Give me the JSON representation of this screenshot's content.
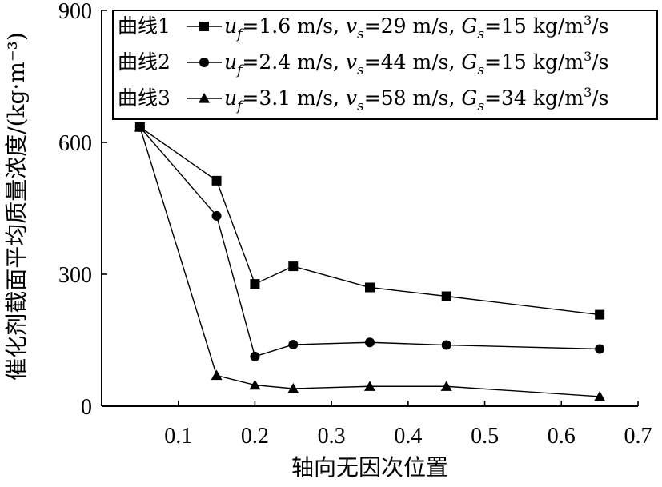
{
  "chart_data": {
    "type": "line",
    "title": "",
    "xlabel": "轴向无因次位置",
    "ylabel": "催化剂截面平均质量浓度/(kg·m⁻³)",
    "xlim": [
      0,
      0.7
    ],
    "ylim": [
      0,
      900
    ],
    "x_ticks": [
      "0.1",
      "0.2",
      "0.3",
      "0.4",
      "0.5",
      "0.6",
      "0.7"
    ],
    "y_ticks": [
      "0",
      "300",
      "600",
      "900"
    ],
    "grid": false,
    "legend_position": "top-right",
    "x": [
      0.05,
      0.15,
      0.2,
      0.25,
      0.35,
      0.45,
      0.65
    ],
    "series": [
      {
        "name": "曲线1",
        "marker": "square",
        "values": [
          635,
          513,
          278,
          318,
          270,
          250,
          208
        ],
        "legend": {
          "name": "曲线1",
          "uf": "1.6 m/s",
          "vs": "29 m/s",
          "Gs": "15 kg/m"
        }
      },
      {
        "name": "曲线2",
        "marker": "circle",
        "values": [
          635,
          433,
          113,
          140,
          145,
          139,
          130
        ],
        "legend": {
          "name": "曲线2",
          "uf": "2.4 m/s",
          "vs": "44 m/s",
          "Gs": "15 kg/m"
        }
      },
      {
        "name": "曲线3",
        "marker": "triangle",
        "values": [
          635,
          70,
          48,
          40,
          45,
          45,
          22
        ],
        "legend": {
          "name": "曲线3",
          "uf": "3.1 m/s",
          "vs": "58 m/s",
          "Gs": "34 kg/m"
        }
      }
    ],
    "legend_units": {
      "cube": "3",
      "per_s": "/s"
    }
  }
}
